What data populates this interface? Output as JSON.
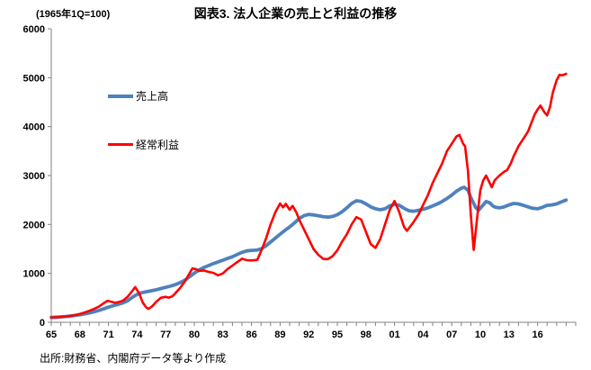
{
  "header": {
    "axis_note": "(1965年1Q=100)",
    "title": "図表3. 法人企業の売上と利益の推移"
  },
  "legend": {
    "items": [
      {
        "label": "売上高"
      },
      {
        "label": "経常利益"
      }
    ]
  },
  "footer": {
    "source": "出所:財務省、内閣府データ等より作成"
  },
  "chart_data": {
    "type": "line",
    "title": "図表3. 法人企業の売上と利益の推移",
    "subtitle": "(1965年1Q=100)",
    "xlabel": "",
    "ylabel": "",
    "xlim": [
      1965,
      2020
    ],
    "ylim": [
      0,
      6000
    ],
    "grid": false,
    "legend_position": "inside-upper-left",
    "axis_color": "#808080",
    "y_ticks": [
      0,
      1000,
      2000,
      3000,
      4000,
      5000,
      6000
    ],
    "x_ticks": [
      {
        "year": 1965,
        "label": "65"
      },
      {
        "year": 1968,
        "label": "68"
      },
      {
        "year": 1971,
        "label": "71"
      },
      {
        "year": 1974,
        "label": "74"
      },
      {
        "year": 1977,
        "label": "77"
      },
      {
        "year": 1980,
        "label": "80"
      },
      {
        "year": 1983,
        "label": "83"
      },
      {
        "year": 1986,
        "label": "86"
      },
      {
        "year": 1989,
        "label": "89"
      },
      {
        "year": 1992,
        "label": "92"
      },
      {
        "year": 1995,
        "label": "95"
      },
      {
        "year": 1998,
        "label": "98"
      },
      {
        "year": 2001,
        "label": "01"
      },
      {
        "year": 2004,
        "label": "04"
      },
      {
        "year": 2007,
        "label": "07"
      },
      {
        "year": 2010,
        "label": "10"
      },
      {
        "year": 2013,
        "label": "13"
      },
      {
        "year": 2016,
        "label": "16"
      }
    ],
    "x_minor_tick_step": 1,
    "series": [
      {
        "name": "売上高",
        "color": "#4F81BD",
        "width": 3.8,
        "points": [
          [
            1965,
            100
          ],
          [
            1965.5,
            104
          ],
          [
            1966,
            110
          ],
          [
            1966.5,
            118
          ],
          [
            1967,
            128
          ],
          [
            1967.5,
            140
          ],
          [
            1968,
            155
          ],
          [
            1968.5,
            172
          ],
          [
            1969,
            192
          ],
          [
            1969.5,
            215
          ],
          [
            1970,
            243
          ],
          [
            1970.5,
            275
          ],
          [
            1971,
            310
          ],
          [
            1971.5,
            340
          ],
          [
            1972,
            365
          ],
          [
            1972.5,
            395
          ],
          [
            1973,
            440
          ],
          [
            1973.5,
            510
          ],
          [
            1974,
            570
          ],
          [
            1974.5,
            605
          ],
          [
            1975,
            625
          ],
          [
            1975.5,
            645
          ],
          [
            1976,
            665
          ],
          [
            1976.5,
            690
          ],
          [
            1977,
            715
          ],
          [
            1977.5,
            740
          ],
          [
            1978,
            770
          ],
          [
            1978.5,
            810
          ],
          [
            1979,
            860
          ],
          [
            1979.5,
            930
          ],
          [
            1980,
            1005
          ],
          [
            1980.5,
            1070
          ],
          [
            1981,
            1120
          ],
          [
            1981.5,
            1160
          ],
          [
            1982,
            1200
          ],
          [
            1982.5,
            1235
          ],
          [
            1983,
            1270
          ],
          [
            1983.5,
            1305
          ],
          [
            1984,
            1340
          ],
          [
            1984.5,
            1385
          ],
          [
            1985,
            1430
          ],
          [
            1985.5,
            1460
          ],
          [
            1986,
            1470
          ],
          [
            1986.5,
            1475
          ],
          [
            1987,
            1500
          ],
          [
            1987.5,
            1560
          ],
          [
            1988,
            1640
          ],
          [
            1988.5,
            1720
          ],
          [
            1989,
            1800
          ],
          [
            1989.5,
            1880
          ],
          [
            1990,
            1950
          ],
          [
            1990.5,
            2030
          ],
          [
            1991,
            2120
          ],
          [
            1991.5,
            2180
          ],
          [
            1992,
            2205
          ],
          [
            1992.5,
            2195
          ],
          [
            1993,
            2180
          ],
          [
            1993.5,
            2160
          ],
          [
            1994,
            2150
          ],
          [
            1994.5,
            2165
          ],
          [
            1995,
            2200
          ],
          [
            1995.5,
            2260
          ],
          [
            1996,
            2340
          ],
          [
            1996.5,
            2430
          ],
          [
            1997,
            2485
          ],
          [
            1997.5,
            2470
          ],
          [
            1998,
            2420
          ],
          [
            1998.5,
            2360
          ],
          [
            1999,
            2320
          ],
          [
            1999.5,
            2300
          ],
          [
            2000,
            2320
          ],
          [
            2000.5,
            2380
          ],
          [
            2001,
            2410
          ],
          [
            2001.5,
            2390
          ],
          [
            2002,
            2330
          ],
          [
            2002.5,
            2280
          ],
          [
            2003,
            2270
          ],
          [
            2003.5,
            2290
          ],
          [
            2004,
            2310
          ],
          [
            2004.5,
            2340
          ],
          [
            2005,
            2380
          ],
          [
            2005.5,
            2420
          ],
          [
            2006,
            2470
          ],
          [
            2006.5,
            2530
          ],
          [
            2007,
            2600
          ],
          [
            2007.5,
            2680
          ],
          [
            2008,
            2740
          ],
          [
            2008.3,
            2760
          ],
          [
            2008.7,
            2700
          ],
          [
            2009,
            2550
          ],
          [
            2009.5,
            2350
          ],
          [
            2009.8,
            2290
          ],
          [
            2010.3,
            2400
          ],
          [
            2010.6,
            2470
          ],
          [
            2011,
            2440
          ],
          [
            2011.3,
            2380
          ],
          [
            2011.6,
            2350
          ],
          [
            2012,
            2340
          ],
          [
            2012.5,
            2360
          ],
          [
            2013,
            2400
          ],
          [
            2013.5,
            2430
          ],
          [
            2014,
            2420
          ],
          [
            2014.5,
            2390
          ],
          [
            2015,
            2360
          ],
          [
            2015.5,
            2330
          ],
          [
            2016,
            2320
          ],
          [
            2016.5,
            2350
          ],
          [
            2017,
            2390
          ],
          [
            2017.5,
            2400
          ],
          [
            2018,
            2420
          ],
          [
            2018.5,
            2460
          ],
          [
            2019,
            2500
          ]
        ]
      },
      {
        "name": "経常利益",
        "color": "#FF0000",
        "width": 2.6,
        "points": [
          [
            1965,
            100
          ],
          [
            1965.5,
            102
          ],
          [
            1966,
            108
          ],
          [
            1966.5,
            118
          ],
          [
            1967,
            130
          ],
          [
            1967.5,
            148
          ],
          [
            1968,
            170
          ],
          [
            1968.5,
            200
          ],
          [
            1969,
            235
          ],
          [
            1969.5,
            275
          ],
          [
            1970,
            320
          ],
          [
            1970.5,
            390
          ],
          [
            1970.9,
            440
          ],
          [
            1971.3,
            420
          ],
          [
            1971.7,
            400
          ],
          [
            1972,
            410
          ],
          [
            1972.5,
            440
          ],
          [
            1973,
            520
          ],
          [
            1973.5,
            640
          ],
          [
            1973.8,
            720
          ],
          [
            1974.2,
            600
          ],
          [
            1974.6,
            400
          ],
          [
            1975,
            295
          ],
          [
            1975.2,
            275
          ],
          [
            1975.6,
            330
          ],
          [
            1976,
            420
          ],
          [
            1976.5,
            500
          ],
          [
            1977,
            520
          ],
          [
            1977.3,
            505
          ],
          [
            1977.7,
            530
          ],
          [
            1978,
            590
          ],
          [
            1978.5,
            700
          ],
          [
            1979,
            830
          ],
          [
            1979.5,
            1000
          ],
          [
            1979.8,
            1100
          ],
          [
            1980.2,
            1085
          ],
          [
            1980.5,
            1050
          ],
          [
            1981,
            1060
          ],
          [
            1981.5,
            1030
          ],
          [
            1982,
            1010
          ],
          [
            1982.5,
            960
          ],
          [
            1983,
            1000
          ],
          [
            1983.5,
            1090
          ],
          [
            1984,
            1160
          ],
          [
            1984.5,
            1230
          ],
          [
            1985,
            1300
          ],
          [
            1985.5,
            1270
          ],
          [
            1986,
            1265
          ],
          [
            1986.6,
            1275
          ],
          [
            1987,
            1450
          ],
          [
            1987.5,
            1700
          ],
          [
            1988,
            2000
          ],
          [
            1988.5,
            2250
          ],
          [
            1989,
            2430
          ],
          [
            1989.3,
            2350
          ],
          [
            1989.6,
            2420
          ],
          [
            1990,
            2300
          ],
          [
            1990.3,
            2380
          ],
          [
            1990.7,
            2250
          ],
          [
            1991,
            2100
          ],
          [
            1991.5,
            1900
          ],
          [
            1992,
            1700
          ],
          [
            1992.5,
            1500
          ],
          [
            1993,
            1380
          ],
          [
            1993.5,
            1300
          ],
          [
            1994,
            1290
          ],
          [
            1994.5,
            1350
          ],
          [
            1995,
            1470
          ],
          [
            1995.5,
            1650
          ],
          [
            1996,
            1800
          ],
          [
            1996.5,
            2000
          ],
          [
            1997,
            2150
          ],
          [
            1997.5,
            2100
          ],
          [
            1998,
            1850
          ],
          [
            1998.5,
            1600
          ],
          [
            1999,
            1520
          ],
          [
            1999.5,
            1700
          ],
          [
            2000,
            2000
          ],
          [
            2000.5,
            2300
          ],
          [
            2001,
            2480
          ],
          [
            2001.5,
            2250
          ],
          [
            2002,
            1950
          ],
          [
            2002.3,
            1870
          ],
          [
            2003,
            2050
          ],
          [
            2003.5,
            2200
          ],
          [
            2004,
            2400
          ],
          [
            2004.5,
            2600
          ],
          [
            2005,
            2850
          ],
          [
            2005.5,
            3050
          ],
          [
            2006,
            3250
          ],
          [
            2006.5,
            3500
          ],
          [
            2007,
            3650
          ],
          [
            2007.5,
            3800
          ],
          [
            2007.8,
            3830
          ],
          [
            2008.2,
            3650
          ],
          [
            2008.4,
            3600
          ],
          [
            2008.7,
            3100
          ],
          [
            2009,
            2200
          ],
          [
            2009.3,
            1480
          ],
          [
            2009.7,
            2200
          ],
          [
            2010,
            2700
          ],
          [
            2010.3,
            2900
          ],
          [
            2010.6,
            3000
          ],
          [
            2011.2,
            2760
          ],
          [
            2011.5,
            2900
          ],
          [
            2012,
            3000
          ],
          [
            2012.5,
            3080
          ],
          [
            2012.8,
            3110
          ],
          [
            2013.2,
            3250
          ],
          [
            2013.5,
            3400
          ],
          [
            2014,
            3600
          ],
          [
            2014.5,
            3750
          ],
          [
            2015,
            3900
          ],
          [
            2015.3,
            4050
          ],
          [
            2015.7,
            4250
          ],
          [
            2016,
            4350
          ],
          [
            2016.3,
            4430
          ],
          [
            2016.7,
            4300
          ],
          [
            2017,
            4230
          ],
          [
            2017.3,
            4400
          ],
          [
            2017.6,
            4700
          ],
          [
            2018,
            4950
          ],
          [
            2018.3,
            5060
          ],
          [
            2018.6,
            5050
          ],
          [
            2019,
            5080
          ]
        ]
      }
    ]
  }
}
